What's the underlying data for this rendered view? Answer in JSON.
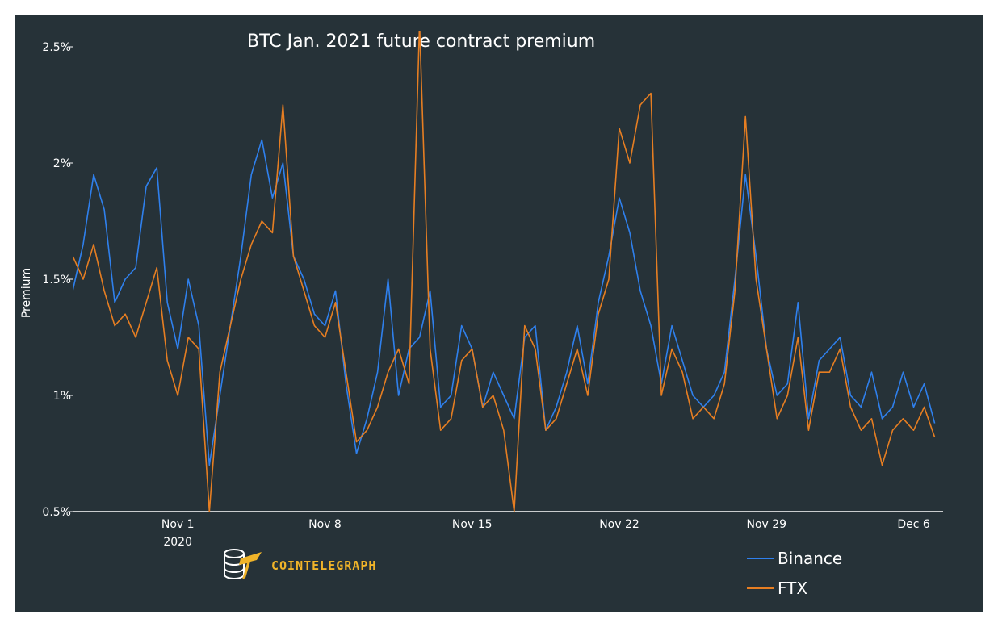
{
  "chart_data": {
    "type": "line",
    "title": "BTC Jan. 2021 future contract premium",
    "xlabel": "",
    "ylabel": "Premium",
    "x_unit": "days since Oct 27, 2020",
    "xlim": [
      0,
      41.4
    ],
    "ylim": [
      0.5,
      2.5
    ],
    "y_ticks": [
      {
        "value": 0.5,
        "label": "0.5%"
      },
      {
        "value": 1.0,
        "label": "1%"
      },
      {
        "value": 1.5,
        "label": "1.5%"
      },
      {
        "value": 2.0,
        "label": "2%"
      },
      {
        "value": 2.5,
        "label": "2.5%"
      }
    ],
    "x_ticks": [
      {
        "value": 5,
        "label": "Nov 1",
        "sublabel": "2020"
      },
      {
        "value": 12,
        "label": "Nov 8"
      },
      {
        "value": 19,
        "label": "Nov 15"
      },
      {
        "value": 26,
        "label": "Nov 22"
      },
      {
        "value": 33,
        "label": "Nov 29"
      },
      {
        "value": 40,
        "label": "Dec 6"
      }
    ],
    "legend": "bottom-right",
    "series": [
      {
        "name": "Binance",
        "color": "#2f80ed",
        "x": [
          0,
          0.5,
          1,
          1.5,
          2,
          2.5,
          3,
          3.5,
          4,
          4.5,
          5,
          5.5,
          6,
          6.5,
          7,
          7.5,
          8,
          8.5,
          9,
          9.5,
          10,
          10.5,
          11,
          11.5,
          12,
          12.5,
          13,
          13.5,
          14,
          14.5,
          15,
          15.5,
          16,
          16.5,
          17,
          17.5,
          18,
          18.5,
          19,
          19.5,
          20,
          20.5,
          21,
          21.5,
          22,
          22.5,
          23,
          23.5,
          24,
          24.5,
          25,
          25.5,
          26,
          26.5,
          27,
          27.5,
          28,
          28.5,
          29,
          29.5,
          30,
          30.5,
          31,
          31.5,
          32,
          32.5,
          33,
          33.5,
          34,
          34.5,
          35,
          35.5,
          36,
          36.5,
          37,
          37.5,
          38,
          38.5,
          39,
          39.5,
          40,
          40.5,
          41
        ],
        "values": [
          1.45,
          1.65,
          1.95,
          1.8,
          1.4,
          1.5,
          1.55,
          1.9,
          1.98,
          1.4,
          1.2,
          1.5,
          1.3,
          0.7,
          1.0,
          1.3,
          1.6,
          1.95,
          2.1,
          1.85,
          2.0,
          1.6,
          1.5,
          1.35,
          1.3,
          1.45,
          1.05,
          0.75,
          0.9,
          1.1,
          1.5,
          1.0,
          1.2,
          1.25,
          1.45,
          0.95,
          1.0,
          1.3,
          1.2,
          0.95,
          1.1,
          1.0,
          0.9,
          1.25,
          1.3,
          0.85,
          0.95,
          1.1,
          1.3,
          1.05,
          1.4,
          1.6,
          1.85,
          1.7,
          1.45,
          1.3,
          1.05,
          1.3,
          1.15,
          1.0,
          0.95,
          1.0,
          1.1,
          1.5,
          1.95,
          1.6,
          1.2,
          1.0,
          1.05,
          1.4,
          0.9,
          1.15,
          1.2,
          1.25,
          1.0,
          0.95,
          1.1,
          0.9,
          0.95,
          1.1,
          0.95,
          1.05,
          0.88
        ]
      },
      {
        "name": "FTX",
        "color": "#e67e22",
        "x": [
          0,
          0.5,
          1,
          1.5,
          2,
          2.5,
          3,
          3.5,
          4,
          4.5,
          5,
          5.5,
          6,
          6.5,
          7,
          7.5,
          8,
          8.5,
          9,
          9.5,
          10,
          10.5,
          11,
          11.5,
          12,
          12.5,
          13,
          13.5,
          14,
          14.5,
          15,
          15.5,
          16,
          16.5,
          17,
          17.5,
          18,
          18.5,
          19,
          19.5,
          20,
          20.5,
          21,
          21.5,
          22,
          22.5,
          23,
          23.5,
          24,
          24.5,
          25,
          25.5,
          26,
          26.5,
          27,
          27.5,
          28,
          28.5,
          29,
          29.5,
          30,
          30.5,
          31,
          31.5,
          32,
          32.5,
          33,
          33.5,
          34,
          34.5,
          35,
          35.5,
          36,
          36.5,
          37,
          37.5,
          38,
          38.5,
          39,
          39.5,
          40,
          40.5,
          41
        ],
        "values": [
          1.6,
          1.5,
          1.65,
          1.45,
          1.3,
          1.35,
          1.25,
          1.4,
          1.55,
          1.15,
          1.0,
          1.25,
          1.2,
          0.5,
          1.1,
          1.3,
          1.5,
          1.65,
          1.75,
          1.7,
          2.25,
          1.6,
          1.45,
          1.3,
          1.25,
          1.4,
          1.1,
          0.8,
          0.85,
          0.95,
          1.1,
          1.2,
          1.05,
          2.6,
          1.2,
          0.85,
          0.9,
          1.15,
          1.2,
          0.95,
          1.0,
          0.85,
          0.5,
          1.3,
          1.2,
          0.85,
          0.9,
          1.05,
          1.2,
          1.0,
          1.35,
          1.5,
          2.15,
          2.0,
          2.25,
          2.3,
          1.0,
          1.2,
          1.1,
          0.9,
          0.95,
          0.9,
          1.05,
          1.45,
          2.2,
          1.5,
          1.2,
          0.9,
          1.0,
          1.25,
          0.85,
          1.1,
          1.1,
          1.2,
          0.95,
          0.85,
          0.9,
          0.7,
          0.85,
          0.9,
          0.85,
          0.95,
          0.82
        ]
      }
    ]
  },
  "brand": {
    "name": "COINTELEGRAPH"
  }
}
